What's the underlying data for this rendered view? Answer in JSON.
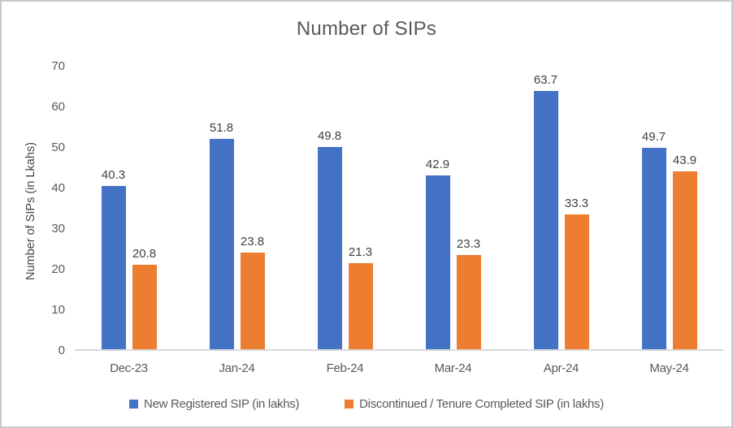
{
  "chart_data": {
    "type": "bar",
    "title": "Number of SIPs",
    "xlabel": "",
    "ylabel": "Number of SIPs (in Lkahs)",
    "categories": [
      "Dec-23",
      "Jan-24",
      "Feb-24",
      "Mar-24",
      "Apr-24",
      "May-24"
    ],
    "series": [
      {
        "name": "New Registered SIP (in lakhs)",
        "color": "#4472C4",
        "values": [
          40.3,
          51.8,
          49.8,
          42.9,
          63.7,
          49.7
        ]
      },
      {
        "name": "Discontinued / Tenure Completed SIP (in lakhs)",
        "color": "#ED7D31",
        "values": [
          20.8,
          23.8,
          21.3,
          23.3,
          33.3,
          43.9
        ]
      }
    ],
    "y_ticks": [
      0,
      10,
      20,
      30,
      40,
      50,
      60,
      70
    ],
    "ylim": [
      0,
      70
    ],
    "grid": false,
    "data_labels": true,
    "data_label_decimals": 1,
    "legend_position": "bottom",
    "colors": {
      "title_text": "#595959",
      "axis_text": "#595959",
      "data_label_text": "#404040",
      "axis_line": "#d9d9d9",
      "frame_border": "#c9c9c9",
      "background": "#ffffff"
    }
  }
}
